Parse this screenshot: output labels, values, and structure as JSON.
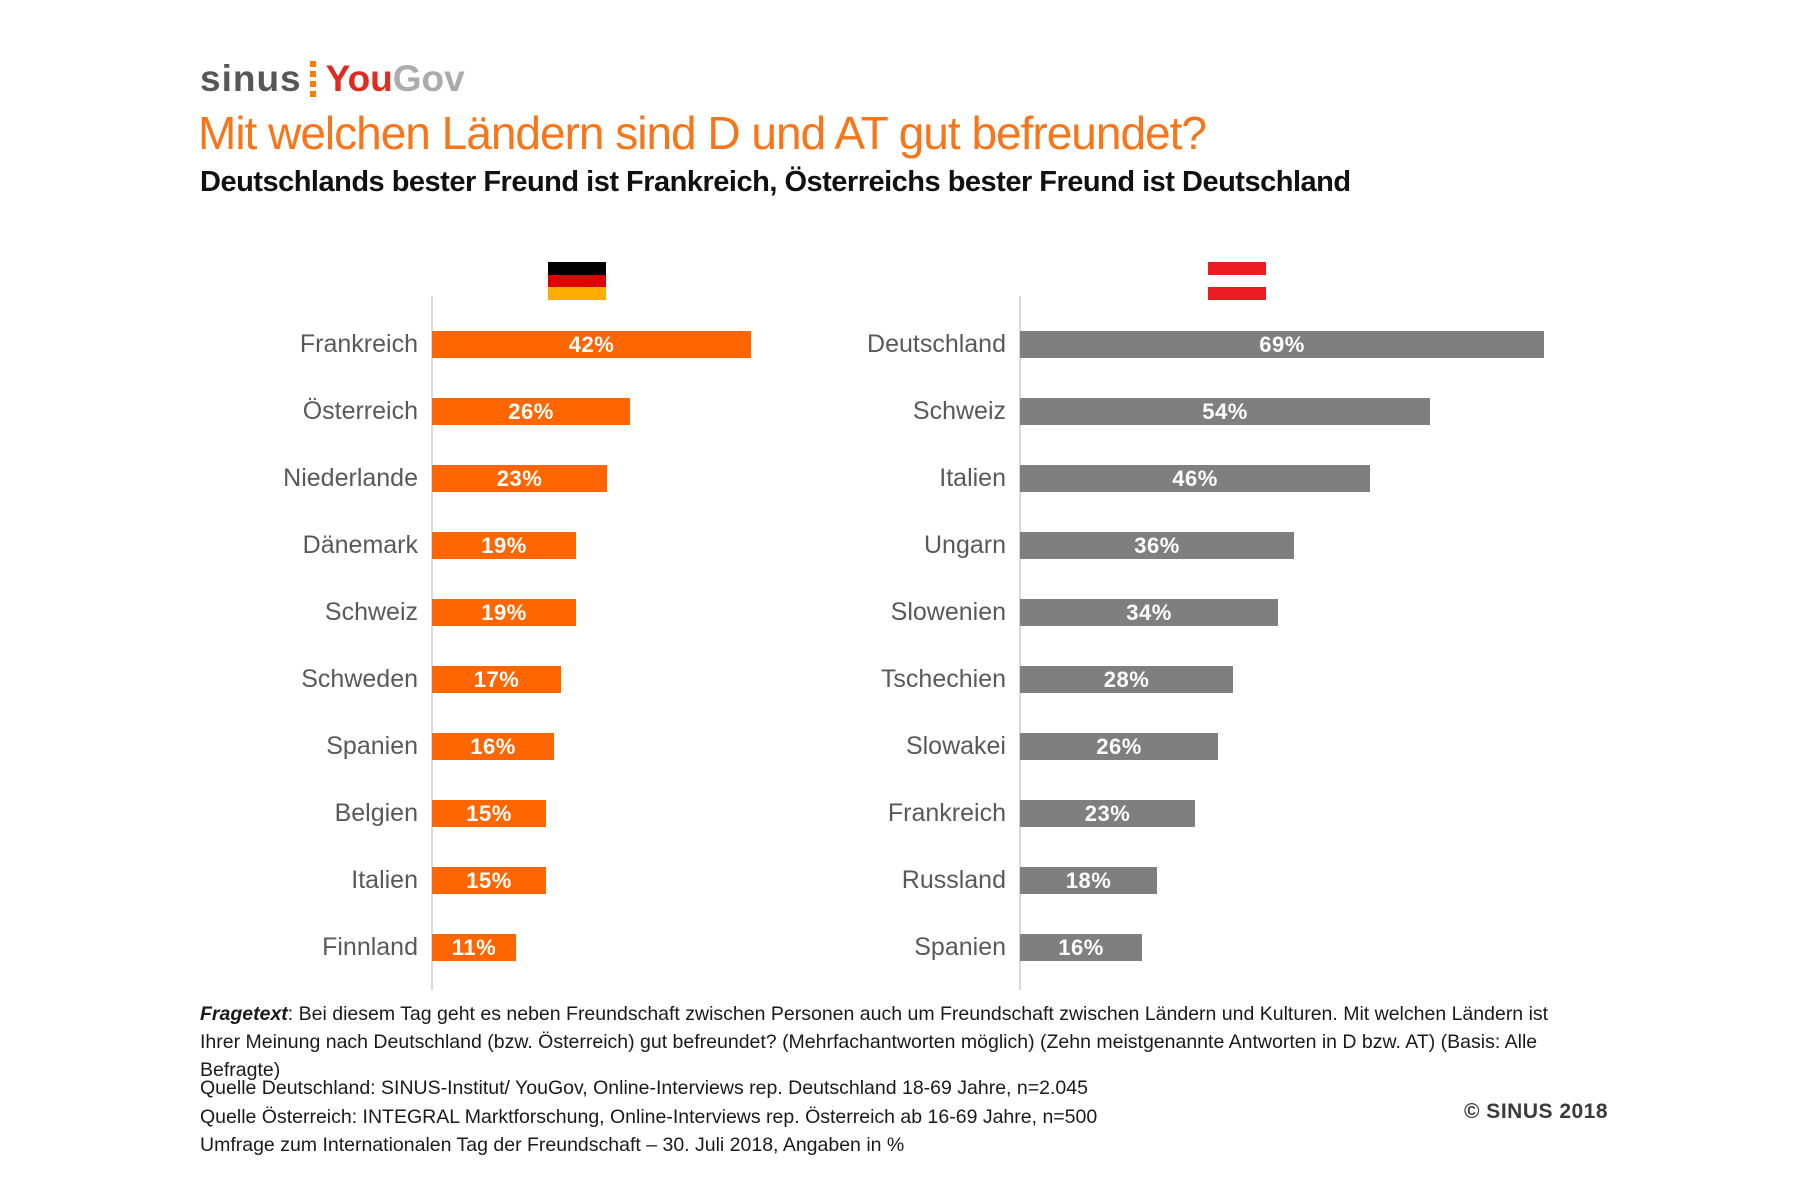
{
  "header": {
    "logo": {
      "sinus": "sinus",
      "you": "You",
      "gov": "Gov"
    },
    "title": "Mit welchen Ländern sind D und AT gut befreundet?",
    "subtitle": "Deutschlands bester Freund ist Frankreich, Österreichs bester Freund ist Deutschland"
  },
  "chart_data": [
    {
      "type": "bar",
      "orientation": "horizontal",
      "group": "Deutschland",
      "flag": "germany-flag",
      "bar_color": "#FF6600",
      "unit": "%",
      "xlim": [
        0,
        75
      ],
      "grid": false,
      "legend": "none",
      "categories": [
        "Frankreich",
        "Österreich",
        "Niederlande",
        "Dänemark",
        "Schweiz",
        "Schweden",
        "Spanien",
        "Belgien",
        "Italien",
        "Finnland"
      ],
      "values": [
        42,
        26,
        23,
        19,
        19,
        17,
        16,
        15,
        15,
        11
      ]
    },
    {
      "type": "bar",
      "orientation": "horizontal",
      "group": "Österreich",
      "flag": "austria-flag",
      "bar_color": "#7F7F7F",
      "unit": "%",
      "xlim": [
        0,
        75
      ],
      "grid": false,
      "legend": "none",
      "categories": [
        "Deutschland",
        "Schweiz",
        "Italien",
        "Ungarn",
        "Slowenien",
        "Tschechien",
        "Slowakei",
        "Frankreich",
        "Russland",
        "Spanien"
      ],
      "values": [
        69,
        54,
        46,
        36,
        34,
        28,
        26,
        23,
        18,
        16
      ]
    }
  ],
  "footer": {
    "fragetext_label": "Fragetext",
    "fragetext_body": ": Bei diesem Tag geht es neben Freundschaft zwischen Personen auch um Freundschaft zwischen Ländern und Kulturen. Mit welchen Ländern ist Ihrer Meinung nach Deutschland (bzw. Österreich) gut befreundet? (Mehrfachantworten möglich) (Zehn meistgenannte Antworten in D bzw. AT) (Basis: Alle Befragte)",
    "source_lines": [
      "Quelle Deutschland: SINUS-Institut/ YouGov, Online-Interviews rep. Deutschland 18-69 Jahre, n=2.045",
      "Quelle Österreich: INTEGRAL Marktforschung, Online-Interviews rep. Österreich ab 16-69 Jahre, n=500",
      "Umfrage zum Internationalen Tag der Freundschaft – 30. Juli 2018, Angaben in %"
    ],
    "copyright": "© SINUS 2018"
  },
  "colors": {
    "title_orange": "#F87619",
    "bar_orange": "#FF6600",
    "bar_gray": "#7F7F7F",
    "label_gray": "#595959",
    "axis_gray": "#D9D9D9",
    "logo_dark_gray": "#57575A",
    "logo_red": "#E02B20",
    "logo_light_gray": "#ABABAB"
  }
}
